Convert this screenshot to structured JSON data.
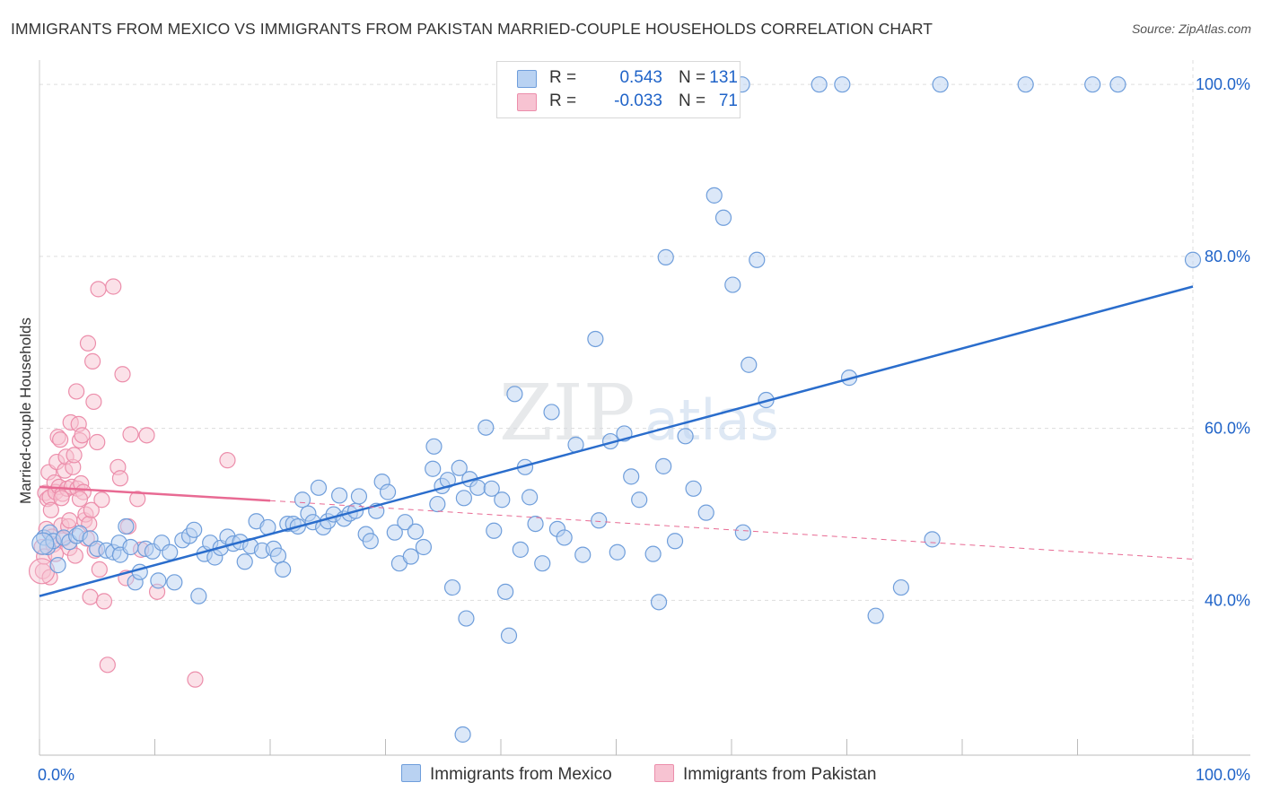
{
  "title": "IMMIGRANTS FROM MEXICO VS IMMIGRANTS FROM PAKISTAN MARRIED-COUPLE HOUSEHOLDS CORRELATION CHART",
  "source": "Source: ZipAtlas.com",
  "watermark": {
    "zip": "ZIP",
    "atlas": "atlas"
  },
  "colors": {
    "mexico_fill": "#b9d2f2",
    "mexico_stroke": "#6f9edb",
    "mexico_line": "#2a6dcc",
    "pakistan_fill": "#f7c3d2",
    "pakistan_stroke": "#ec8eab",
    "pakistan_line": "#e86a93",
    "accent_text": "#1f63c8",
    "grid": "#dddddd"
  },
  "legend": {
    "mexico": {
      "r_label": "R =",
      "r_value": "0.543",
      "n_label": "N =",
      "n_value": "131"
    },
    "pakistan": {
      "r_label": "R =",
      "r_value": "-0.033",
      "n_label": "N =",
      "n_value": "71"
    }
  },
  "chart_data": {
    "type": "scatter",
    "title": "IMMIGRANTS FROM MEXICO VS IMMIGRANTS FROM PAKISTAN MARRIED-COUPLE HOUSEHOLDS CORRELATION CHART",
    "xlabel": "",
    "ylabel": "Married-couple Households",
    "xlim": [
      0,
      100
    ],
    "ylim": [
      22,
      102
    ],
    "x_tick_labels": [
      "0.0%",
      "100.0%"
    ],
    "y_ticks": [
      40,
      60,
      80,
      100
    ],
    "y_tick_labels": [
      "40.0%",
      "60.0%",
      "80.0%",
      "100.0%"
    ],
    "grid": true,
    "legend_position": "top-center",
    "series": [
      {
        "name": "Immigrants from Mexico",
        "r": 0.543,
        "n": 131,
        "trend": {
          "x": [
            0,
            100
          ],
          "y": [
            40.5,
            76.5
          ]
        },
        "points": [
          [
            0.4,
            47.3
          ],
          [
            0.7,
            46.2
          ],
          [
            0.9,
            47.9
          ],
          [
            1.2,
            46.9
          ],
          [
            1.6,
            44.1
          ],
          [
            2.1,
            47.3
          ],
          [
            2.6,
            46.8
          ],
          [
            3.2,
            47.5
          ],
          [
            3.5,
            47.8
          ],
          [
            4.4,
            47.2
          ],
          [
            5.0,
            46.0
          ],
          [
            5.8,
            45.8
          ],
          [
            6.4,
            45.6
          ],
          [
            6.9,
            46.7
          ],
          [
            7.0,
            45.3
          ],
          [
            7.5,
            48.6
          ],
          [
            7.9,
            46.2
          ],
          [
            8.3,
            42.1
          ],
          [
            8.7,
            43.3
          ],
          [
            9.2,
            46.0
          ],
          [
            9.8,
            45.7
          ],
          [
            10.3,
            42.3
          ],
          [
            10.6,
            46.7
          ],
          [
            11.3,
            45.6
          ],
          [
            11.7,
            42.1
          ],
          [
            12.4,
            47.0
          ],
          [
            13.0,
            47.5
          ],
          [
            13.4,
            48.2
          ],
          [
            13.8,
            40.5
          ],
          [
            14.3,
            45.4
          ],
          [
            14.8,
            46.7
          ],
          [
            15.2,
            45.0
          ],
          [
            15.7,
            46.1
          ],
          [
            16.3,
            47.4
          ],
          [
            16.8,
            46.6
          ],
          [
            17.4,
            46.8
          ],
          [
            17.8,
            44.5
          ],
          [
            18.3,
            46.3
          ],
          [
            18.8,
            49.2
          ],
          [
            19.3,
            45.8
          ],
          [
            19.8,
            48.5
          ],
          [
            20.3,
            46.0
          ],
          [
            20.7,
            45.2
          ],
          [
            21.1,
            43.6
          ],
          [
            21.5,
            48.9
          ],
          [
            22.0,
            48.9
          ],
          [
            22.4,
            48.6
          ],
          [
            22.8,
            51.7
          ],
          [
            23.3,
            50.1
          ],
          [
            23.7,
            49.1
          ],
          [
            24.2,
            53.1
          ],
          [
            24.6,
            48.5
          ],
          [
            25.0,
            49.2
          ],
          [
            25.5,
            50.0
          ],
          [
            26.0,
            52.2
          ],
          [
            26.4,
            49.5
          ],
          [
            26.9,
            50.1
          ],
          [
            27.4,
            50.4
          ],
          [
            27.7,
            52.1
          ],
          [
            28.3,
            47.7
          ],
          [
            28.7,
            46.9
          ],
          [
            29.2,
            50.4
          ],
          [
            29.7,
            53.8
          ],
          [
            30.2,
            52.6
          ],
          [
            30.8,
            47.9
          ],
          [
            31.2,
            44.3
          ],
          [
            31.7,
            49.1
          ],
          [
            32.2,
            45.1
          ],
          [
            32.6,
            48.0
          ],
          [
            33.3,
            46.2
          ],
          [
            34.1,
            55.3
          ],
          [
            34.2,
            57.9
          ],
          [
            34.5,
            51.2
          ],
          [
            34.9,
            53.3
          ],
          [
            35.4,
            54.0
          ],
          [
            35.8,
            41.5
          ],
          [
            36.4,
            55.4
          ],
          [
            36.8,
            51.9
          ],
          [
            37.3,
            54.1
          ],
          [
            38.0,
            53.1
          ],
          [
            38.7,
            60.1
          ],
          [
            39.2,
            53.0
          ],
          [
            39.4,
            48.1
          ],
          [
            40.1,
            51.7
          ],
          [
            40.7,
            35.9
          ],
          [
            41.2,
            64.0
          ],
          [
            41.7,
            45.9
          ],
          [
            42.1,
            55.5
          ],
          [
            42.5,
            52.0
          ],
          [
            43.0,
            48.9
          ],
          [
            43.6,
            44.3
          ],
          [
            44.4,
            61.9
          ],
          [
            44.9,
            48.3
          ],
          [
            45.5,
            47.3
          ],
          [
            46.5,
            58.1
          ],
          [
            47.1,
            45.3
          ],
          [
            48.2,
            70.4
          ],
          [
            48.5,
            49.3
          ],
          [
            49.5,
            58.5
          ],
          [
            50.1,
            45.6
          ],
          [
            50.7,
            59.4
          ],
          [
            51.3,
            54.4
          ],
          [
            52.0,
            51.7
          ],
          [
            53.2,
            45.4
          ],
          [
            53.7,
            39.8
          ],
          [
            54.1,
            55.6
          ],
          [
            54.3,
            79.9
          ],
          [
            55.1,
            46.9
          ],
          [
            56.0,
            59.1
          ],
          [
            56.7,
            53.0
          ],
          [
            57.8,
            50.2
          ],
          [
            58.5,
            87.1
          ],
          [
            59.3,
            84.5
          ],
          [
            60.1,
            76.7
          ],
          [
            61.0,
            47.9
          ],
          [
            61.5,
            67.4
          ],
          [
            62.2,
            79.6
          ],
          [
            63.0,
            63.3
          ],
          [
            70.2,
            65.9
          ],
          [
            72.5,
            38.2
          ],
          [
            74.7,
            41.5
          ],
          [
            77.4,
            47.1
          ],
          [
            78.1,
            100.0
          ],
          [
            85.5,
            100.0
          ],
          [
            91.3,
            100.0
          ],
          [
            93.5,
            100.0
          ],
          [
            100.0,
            79.6
          ],
          [
            60.9,
            100.0
          ],
          [
            67.6,
            100.0
          ],
          [
            69.6,
            100.0
          ],
          [
            40.4,
            41.0
          ],
          [
            37.0,
            37.9
          ],
          [
            36.7,
            24.4
          ]
        ]
      },
      {
        "name": "Immigrants from Pakistan",
        "r": -0.033,
        "n": 71,
        "trend": {
          "x": [
            0,
            20
          ],
          "y": [
            53.2,
            51.6
          ]
        },
        "trend_dashed": {
          "x": [
            20,
            100
          ],
          "y": [
            51.6,
            44.8
          ]
        },
        "points": [
          [
            0.2,
            46.2
          ],
          [
            0.3,
            43.4
          ],
          [
            0.4,
            45.1
          ],
          [
            0.5,
            52.5
          ],
          [
            0.6,
            48.3
          ],
          [
            0.7,
            51.8
          ],
          [
            0.8,
            54.9
          ],
          [
            0.9,
            52.0
          ],
          [
            1.0,
            50.5
          ],
          [
            1.1,
            47.4
          ],
          [
            1.2,
            46.5
          ],
          [
            1.3,
            53.7
          ],
          [
            1.4,
            52.6
          ],
          [
            1.5,
            56.1
          ],
          [
            1.6,
            59.0
          ],
          [
            1.7,
            53.2
          ],
          [
            1.8,
            58.7
          ],
          [
            1.9,
            48.7
          ],
          [
            2.0,
            52.4
          ],
          [
            2.1,
            47.2
          ],
          [
            2.2,
            55.1
          ],
          [
            2.3,
            56.7
          ],
          [
            2.4,
            53.0
          ],
          [
            2.5,
            48.6
          ],
          [
            2.6,
            46.1
          ],
          [
            2.7,
            60.7
          ],
          [
            2.8,
            53.2
          ],
          [
            2.9,
            55.5
          ],
          [
            3.0,
            56.9
          ],
          [
            3.1,
            45.2
          ],
          [
            3.2,
            64.3
          ],
          [
            3.3,
            53.0
          ],
          [
            3.4,
            60.5
          ],
          [
            3.5,
            58.6
          ],
          [
            3.6,
            53.6
          ],
          [
            3.7,
            59.2
          ],
          [
            3.8,
            52.6
          ],
          [
            3.9,
            49.3
          ],
          [
            4.0,
            50.0
          ],
          [
            4.1,
            47.2
          ],
          [
            4.2,
            69.9
          ],
          [
            4.3,
            48.9
          ],
          [
            4.4,
            40.4
          ],
          [
            4.5,
            50.5
          ],
          [
            4.6,
            67.8
          ],
          [
            4.7,
            63.1
          ],
          [
            4.8,
            45.8
          ],
          [
            5.0,
            58.4
          ],
          [
            5.1,
            76.2
          ],
          [
            5.2,
            43.6
          ],
          [
            5.4,
            51.7
          ],
          [
            5.6,
            39.9
          ],
          [
            5.9,
            32.5
          ],
          [
            6.4,
            76.5
          ],
          [
            6.8,
            55.5
          ],
          [
            7.0,
            54.2
          ],
          [
            7.2,
            66.3
          ],
          [
            7.5,
            42.6
          ],
          [
            7.7,
            48.6
          ],
          [
            7.9,
            59.3
          ],
          [
            8.5,
            51.8
          ],
          [
            8.8,
            45.9
          ],
          [
            9.3,
            59.2
          ],
          [
            10.2,
            41.0
          ],
          [
            13.5,
            30.8
          ],
          [
            16.3,
            56.3
          ],
          [
            3.5,
            51.8
          ],
          [
            1.9,
            51.9
          ],
          [
            2.6,
            49.3
          ],
          [
            0.9,
            42.7
          ],
          [
            1.4,
            45.4
          ]
        ]
      }
    ]
  }
}
